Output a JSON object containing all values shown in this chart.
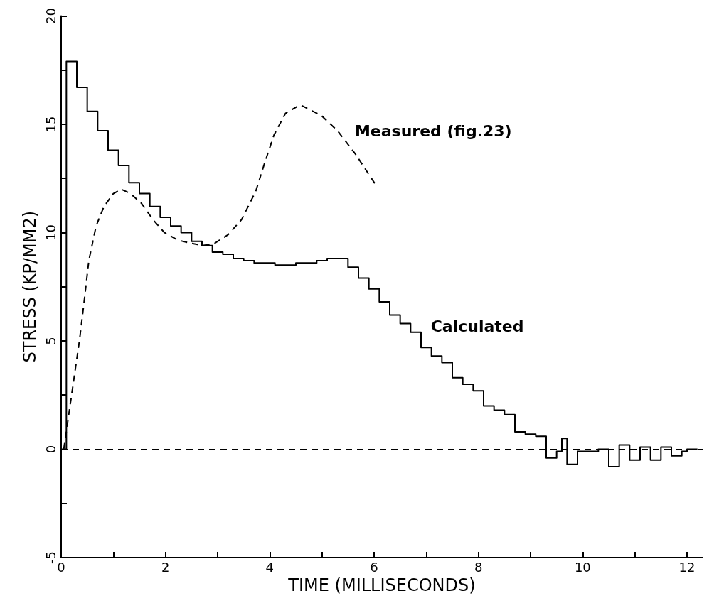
{
  "chart_data": {
    "type": "line",
    "xlabel": "TIME (MILLISECONDS)",
    "ylabel": "STRESS (KP/MM2)",
    "xlim": [
      0,
      12.3
    ],
    "xticks": [
      0,
      {
        "value": 1,
        "label": null
      },
      2,
      {
        "value": 3,
        "label": null
      },
      4,
      {
        "value": 5,
        "label": null
      },
      6,
      {
        "value": 7,
        "label": null
      },
      8,
      {
        "value": 9,
        "label": null
      },
      10,
      {
        "value": 11,
        "label": null
      },
      12
    ],
    "ylim": [
      -5,
      20
    ],
    "yticks": [
      -5,
      {
        "value": -2.5,
        "label": null
      },
      0,
      {
        "value": 2.5,
        "label": null
      },
      5,
      {
        "value": 7.5,
        "label": null
      },
      10,
      {
        "value": 12.5,
        "label": null
      },
      15,
      {
        "value": 17.5,
        "label": null
      },
      20
    ],
    "grid": false,
    "legend": false,
    "marker": "none",
    "series": [
      {
        "name": "Calculated",
        "type": "step",
        "color": "#000000",
        "line_style": "solid",
        "x": [
          0,
          0.1,
          0.3,
          0.5,
          0.7,
          0.9,
          1.1,
          1.3,
          1.5,
          1.7,
          1.9,
          2.1,
          2.3,
          2.5,
          2.7,
          2.9,
          3.1,
          3.3,
          3.5,
          3.7,
          3.9,
          4.1,
          4.3,
          4.5,
          4.7,
          4.9,
          5.1,
          5.3,
          5.5,
          5.7,
          5.9,
          6.1,
          6.3,
          6.5,
          6.7,
          6.9,
          7.1,
          7.3,
          7.5,
          7.7,
          7.9,
          8.1,
          8.3,
          8.5,
          8.7,
          8.9,
          9.1,
          9.3,
          9.5,
          9.6,
          9.7,
          9.9,
          10.1,
          10.3,
          10.5,
          10.7,
          10.9,
          11.1,
          11.3,
          11.5,
          11.7,
          11.9,
          12.0,
          12.2
        ],
        "values": [
          0,
          17.9,
          16.7,
          15.6,
          14.7,
          13.8,
          13.1,
          12.3,
          11.8,
          11.2,
          10.7,
          10.3,
          10.0,
          9.6,
          9.4,
          9.1,
          9.0,
          8.8,
          8.7,
          8.6,
          8.6,
          8.5,
          8.5,
          8.6,
          8.6,
          8.7,
          8.8,
          8.8,
          8.4,
          7.9,
          7.4,
          6.8,
          6.2,
          5.8,
          5.4,
          4.7,
          4.3,
          4.0,
          3.3,
          3.0,
          2.7,
          2.0,
          1.8,
          1.6,
          0.8,
          0.7,
          0.6,
          -0.4,
          -0.1,
          0.5,
          -0.7,
          -0.1,
          -0.1,
          0,
          -0.8,
          0.2,
          -0.5,
          0.1,
          -0.5,
          0.1,
          -0.3,
          -0.1,
          0,
          0
        ]
      },
      {
        "name": "Measured (fig.23)",
        "type": "line",
        "color": "#000000",
        "line_style": "dashed",
        "x": [
          0.05,
          0.2,
          0.35,
          0.45,
          0.53,
          0.67,
          0.82,
          1.0,
          1.15,
          1.33,
          1.54,
          1.76,
          1.98,
          2.24,
          2.5,
          2.72,
          2.94,
          3.2,
          3.46,
          3.73,
          3.9,
          4.08,
          4.3,
          4.58,
          4.99,
          5.3,
          5.65,
          6.06
        ],
        "values": [
          0,
          2.5,
          5.0,
          7.0,
          8.7,
          10.3,
          11.2,
          11.8,
          12.0,
          11.8,
          11.35,
          10.6,
          10.0,
          9.65,
          9.5,
          9.4,
          9.5,
          9.9,
          10.6,
          11.9,
          13.2,
          14.5,
          15.5,
          15.9,
          15.4,
          14.7,
          13.6,
          12.1
        ]
      }
    ],
    "ref_lines": [
      {
        "axis": "y",
        "value": 0,
        "line_style": "dashed",
        "color": "#000000"
      }
    ]
  }
}
